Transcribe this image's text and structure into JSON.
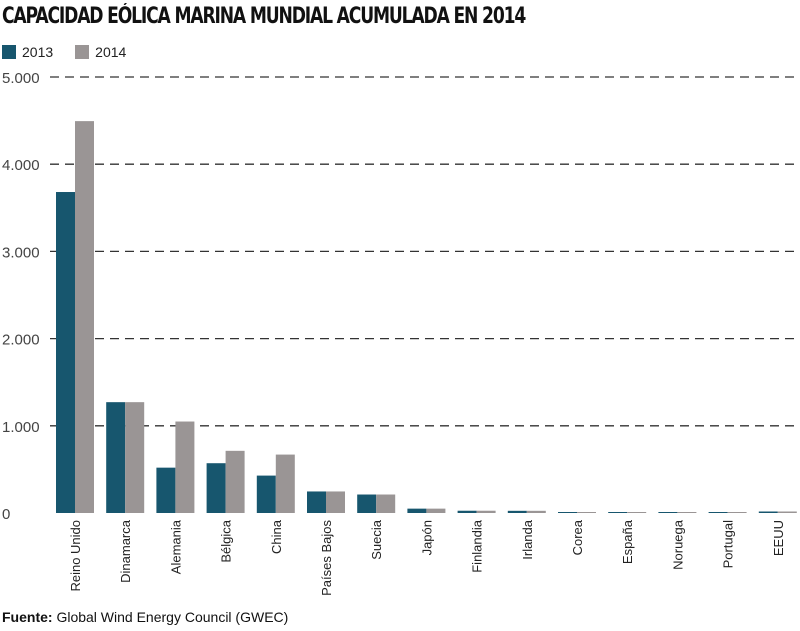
{
  "chart_data": {
    "type": "bar",
    "title": "CAPACIDAD EÓLICA MARINA MUNDIAL ACUMULADA EN 2014",
    "categories": [
      "Reino Unido",
      "Dinamarca",
      "Alemania",
      "Bélgica",
      "China",
      "Países Bajos",
      "Suecia",
      "Japón",
      "Finlandia",
      "Irlanda",
      "Corea",
      "España",
      "Noruega",
      "Portugal",
      "EEUU"
    ],
    "series": [
      {
        "name": "2013",
        "color": "#17566e",
        "values": [
          3681,
          1271,
          520,
          571,
          429,
          247,
          212,
          50,
          26,
          25,
          5,
          5,
          2,
          2,
          0
        ]
      },
      {
        "name": "2014",
        "color": "#9a9595",
        "values": [
          4494,
          1271,
          1049,
          713,
          670,
          247,
          212,
          50,
          26,
          25,
          5,
          5,
          2,
          2,
          0
        ]
      }
    ],
    "yticks": [
      "0",
      "1.000",
      "2.000",
      "3.000",
      "4.000",
      "5.000"
    ],
    "ytick_values": [
      0,
      1000,
      2000,
      3000,
      4000,
      5000
    ],
    "ylim": [
      0,
      5000
    ],
    "grid": true,
    "legend": "top-left",
    "xlabel": "",
    "ylabel": ""
  },
  "source": {
    "label": "Fuente:",
    "text": " Global Wind Energy Council (GWEC)"
  }
}
